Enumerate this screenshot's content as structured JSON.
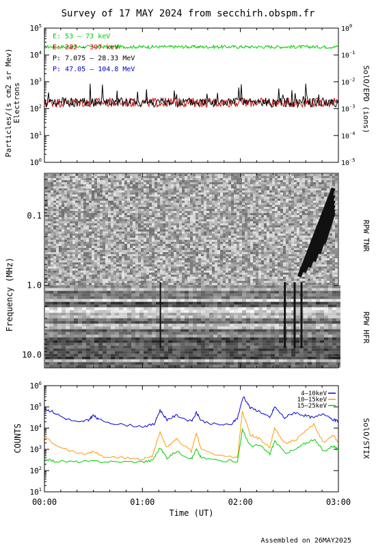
{
  "title": "Survey of 17 MAY 2024 from secchirh.obspm.fr",
  "footer": "Assembled on 26MAY2025",
  "colors": {
    "e_low": "#00cc00",
    "e_high": "#cc0000",
    "p_low": "#000000",
    "p_high": "#0000cc",
    "stix_4_10": "#0000cc",
    "stix_10_15": "#ff9900",
    "stix_15_25": "#00cc00"
  },
  "time_axis": {
    "label": "Time (UT)",
    "ticks": [
      "00:00",
      "01:00",
      "02:00",
      "03:00"
    ],
    "range_hours": [
      0,
      3
    ]
  },
  "chart_data": [
    {
      "type": "line",
      "panel": "SoIO/EPD",
      "ylabel_left": "Particles/(s cm2 sr Mev)",
      "ylabel_left_sub": "Electrons",
      "ylabel_right": "SolO/EPD (ions)",
      "yscale": "log",
      "ylim_left": [
        1,
        100000
      ],
      "ylim_right": [
        1e-05,
        1
      ],
      "yticks_left": [
        "10^0",
        "10^1",
        "10^2",
        "10^3",
        "10^4",
        "10^5"
      ],
      "yticks_right": [
        "10^-5",
        "10^-4",
        "10^-3",
        "10^-2",
        "10^-1",
        "10^0"
      ],
      "xlim": [
        0,
        3
      ],
      "series": [
        {
          "name": "E: 53 – 73 keV",
          "color_key": "e_low",
          "axis": "left",
          "level": 20000
        },
        {
          "name": "E: 282 – 397 keV",
          "color_key": "e_high",
          "axis": "left",
          "level": 170
        },
        {
          "name": "P: 7.075 – 28.33 MeV",
          "color_key": "p_low",
          "axis": "left",
          "level": 170
        },
        {
          "name": "P: 47.05 – 104.8 MeV",
          "color_key": "p_high",
          "axis": "left",
          "level": null
        }
      ]
    },
    {
      "type": "heatmap",
      "panel": "RPW",
      "ylabel": "Frequency (MHz)",
      "yscale": "log",
      "yticks": [
        "0.1",
        "1.0",
        "10.0"
      ],
      "ylim": [
        0.025,
        15
      ],
      "sublabels": [
        "RPW TNR",
        "RPW HFR"
      ]
    },
    {
      "type": "line",
      "panel": "SolO/STIX",
      "ylabel": "COUNTS",
      "ylabel_right": "SolO/STIX",
      "yscale": "log",
      "ylim": [
        10,
        1000000
      ],
      "yticks": [
        "10^1",
        "10^2",
        "10^3",
        "10^4",
        "10^5",
        "10^6"
      ],
      "xlim": [
        0,
        3
      ],
      "series": [
        {
          "name": "4–10keV",
          "color_key": "stix_4_10",
          "x": [
            0.0,
            0.08,
            0.2,
            0.35,
            0.45,
            0.5,
            0.55,
            0.75,
            1.0,
            1.12,
            1.18,
            1.25,
            1.35,
            1.5,
            1.55,
            1.6,
            1.75,
            1.9,
            1.97,
            2.03,
            2.1,
            2.2,
            2.3,
            2.35,
            2.45,
            2.55,
            2.65,
            2.75,
            2.85,
            2.95,
            3.0
          ],
          "y": [
            80000,
            60000,
            30000,
            18000,
            25000,
            40000,
            25000,
            15000,
            12000,
            15000,
            70000,
            25000,
            40000,
            20000,
            55000,
            22000,
            15000,
            14000,
            30000,
            320000,
            90000,
            60000,
            30000,
            100000,
            30000,
            55000,
            40000,
            30000,
            50000,
            25000,
            20000
          ]
        },
        {
          "name": "10–15keV",
          "color_key": "stix_10_15",
          "x": [
            0.0,
            0.1,
            0.25,
            0.4,
            0.5,
            0.6,
            0.8,
            1.0,
            1.1,
            1.18,
            1.25,
            1.35,
            1.5,
            1.55,
            1.6,
            1.8,
            1.97,
            2.02,
            2.1,
            2.2,
            2.3,
            2.35,
            2.45,
            2.55,
            2.65,
            2.75,
            2.85,
            2.95,
            3.0
          ],
          "y": [
            4000,
            1800,
            900,
            600,
            800,
            450,
            400,
            350,
            500,
            6000,
            1200,
            3000,
            800,
            6000,
            900,
            500,
            400,
            60000,
            5000,
            3000,
            1200,
            10000,
            2000,
            2500,
            6000,
            15000,
            2000,
            5000,
            2000
          ]
        },
        {
          "name": "15–25keV",
          "color_key": "stix_15_25",
          "x": [
            0.0,
            0.1,
            0.3,
            0.5,
            0.7,
            1.0,
            1.1,
            1.18,
            1.25,
            1.35,
            1.5,
            1.55,
            1.6,
            1.8,
            1.97,
            2.02,
            2.1,
            2.2,
            2.3,
            2.35,
            2.45,
            2.55,
            2.65,
            2.75,
            2.85,
            2.95,
            3.0
          ],
          "y": [
            350,
            280,
            260,
            270,
            260,
            260,
            300,
            1200,
            400,
            800,
            350,
            1000,
            400,
            300,
            280,
            8000,
            1500,
            1500,
            600,
            2500,
            700,
            900,
            1800,
            3000,
            800,
            1500,
            900
          ]
        }
      ]
    }
  ]
}
